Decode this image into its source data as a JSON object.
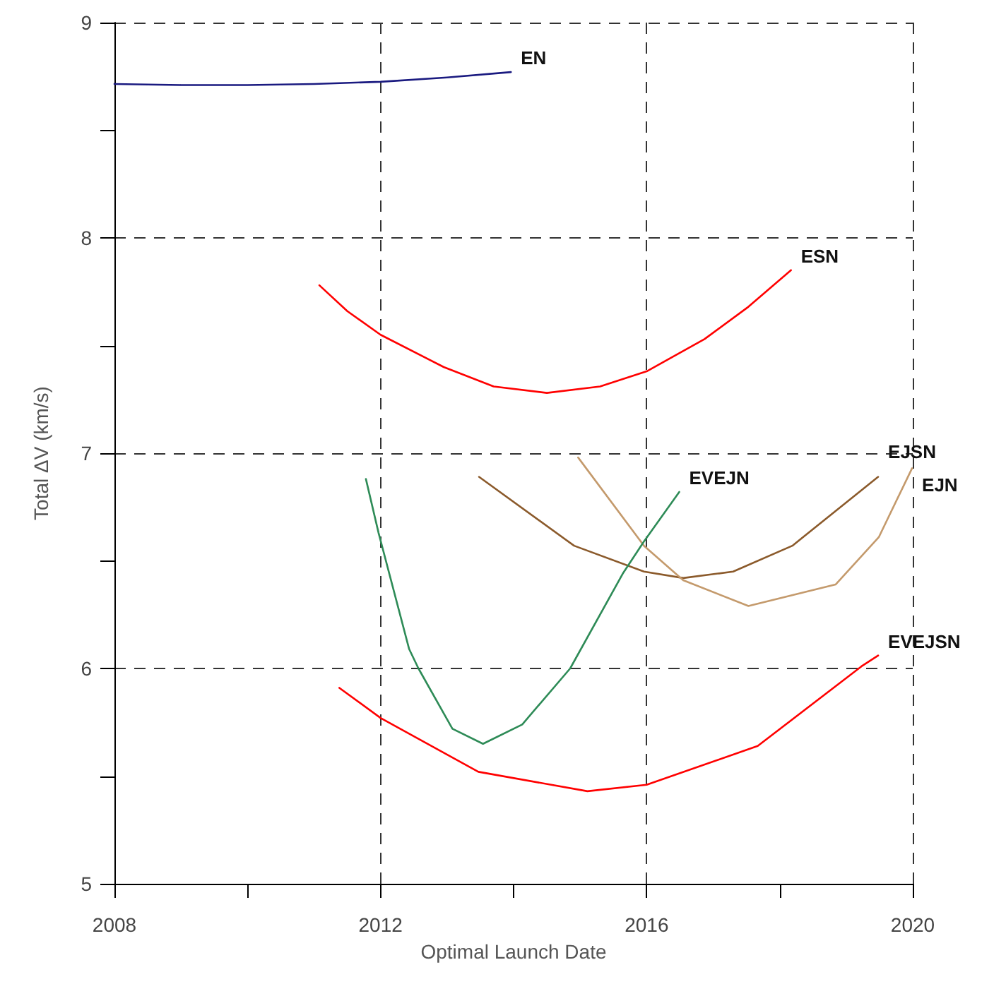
{
  "chart_data": {
    "type": "line",
    "xlabel": "Optimal Launch Date",
    "ylabel": "Total ΔV (km/s)",
    "xlim": [
      2008,
      2020
    ],
    "ylim": [
      5,
      9
    ],
    "xticks": [
      2008,
      {
        "value": 2010,
        "label": null
      },
      2012,
      {
        "value": 2014,
        "label": null
      },
      2016,
      {
        "value": 2018,
        "label": null
      },
      2020
    ],
    "yticks": [
      5,
      {
        "value": 5.5,
        "label": null
      },
      6,
      {
        "value": 6.5,
        "label": null
      },
      7,
      {
        "value": 7.5,
        "label": null
      },
      8,
      {
        "value": 8.5,
        "label": null
      },
      9
    ],
    "grid": true,
    "marker": "none",
    "line_style": "solid",
    "series": [
      {
        "name": "EN",
        "color": "#1a1a80",
        "x": [
          2008,
          2009,
          2010,
          2011,
          2012,
          2013,
          2013.96
        ],
        "values": [
          8.715,
          8.71,
          8.71,
          8.715,
          8.725,
          8.745,
          8.77
        ]
      },
      {
        "name": "ESN",
        "color": "#ff0000",
        "x": [
          2011.08,
          2011.5,
          2012,
          2012.95,
          2013.7,
          2014.5,
          2015.3,
          2016,
          2016.87,
          2017.53,
          2018.17
        ],
        "values": [
          7.78,
          7.66,
          7.55,
          7.4,
          7.31,
          7.28,
          7.31,
          7.38,
          7.53,
          7.68,
          7.85
        ]
      },
      {
        "name": "EJSN",
        "color": "#8b5a2b",
        "x": [
          2013.48,
          2014.91,
          2015.96,
          2016.55,
          2017.3,
          2018.19,
          2019.48
        ],
        "values": [
          6.89,
          6.57,
          6.45,
          6.42,
          6.45,
          6.57,
          6.89
        ]
      },
      {
        "name": "EJN",
        "color": "#c49a6c",
        "x": [
          2014.97,
          2015.96,
          2016.55,
          2017.53,
          2018.84,
          2019.49,
          2019.99
        ],
        "values": [
          6.98,
          6.57,
          6.41,
          6.29,
          6.39,
          6.61,
          6.93
        ]
      },
      {
        "name": "EVEJN",
        "color": "#2e8b57",
        "x": [
          2011.78,
          2011.97,
          2012.43,
          2012.57,
          2013.08,
          2013.54,
          2014.13,
          2014.85,
          2015.64,
          2015.96,
          2016.49
        ],
        "values": [
          6.88,
          6.63,
          6.09,
          6.0,
          5.72,
          5.65,
          5.74,
          6.0,
          6.44,
          6.59,
          6.82
        ]
      },
      {
        "name": "EVEJSN",
        "color": "#ff0000",
        "x": [
          2011.38,
          2012,
          2013.47,
          2015.11,
          2016,
          2017.67,
          2019.23,
          2019.48
        ],
        "values": [
          5.91,
          5.77,
          5.52,
          5.43,
          5.46,
          5.64,
          6.01,
          6.06
        ]
      }
    ]
  }
}
